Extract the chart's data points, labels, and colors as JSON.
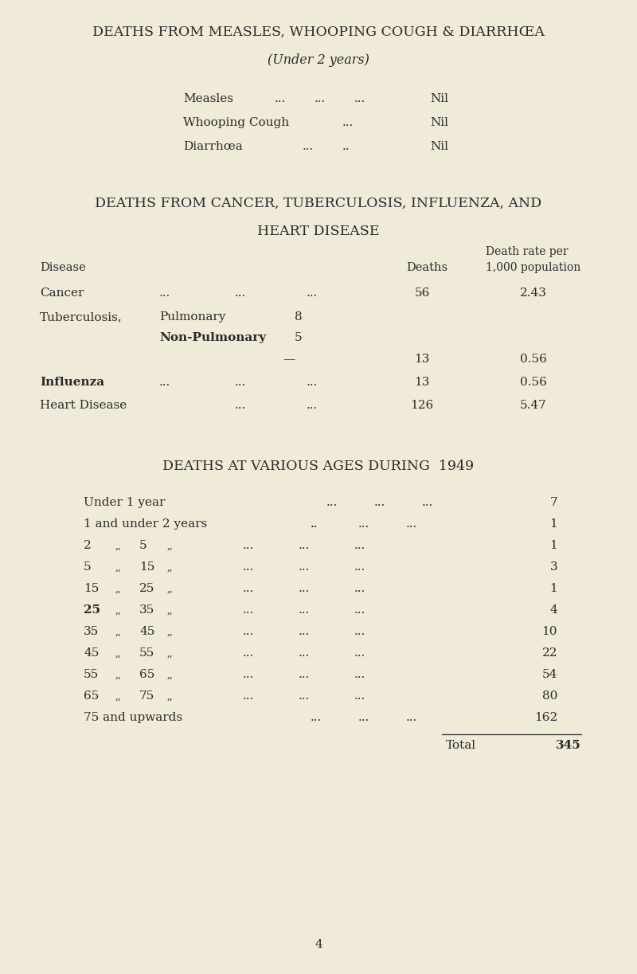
{
  "bg_color": "#f0ead8",
  "text_color": "#2a2a2a",
  "fig_w": 8.0,
  "fig_h": 12.23,
  "dpi": 100
}
